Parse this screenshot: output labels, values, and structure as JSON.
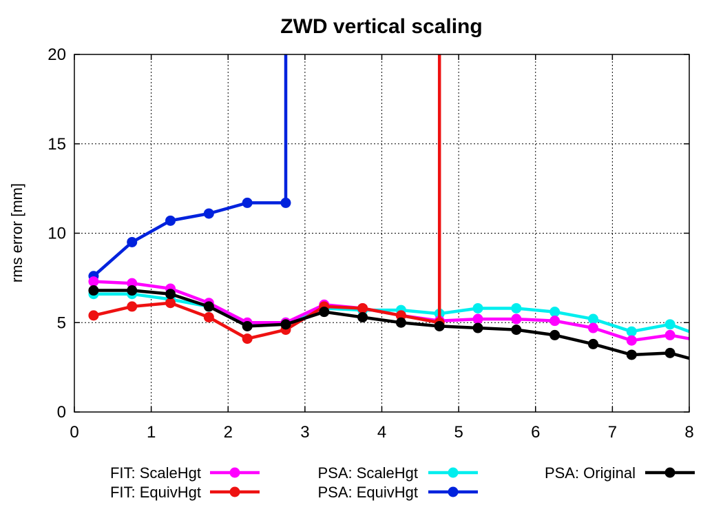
{
  "chart_data": {
    "type": "line",
    "title": "ZWD vertical scaling",
    "xlabel": "",
    "ylabel": "rms error [mm]",
    "xlim": [
      0,
      8
    ],
    "ylim": [
      0,
      20
    ],
    "xticks": [
      0,
      1,
      2,
      3,
      4,
      5,
      6,
      7,
      8
    ],
    "yticks": [
      0,
      5,
      10,
      15,
      20
    ],
    "grid": true,
    "legend_placement": "bottom",
    "series": [
      {
        "name": "FIT: ScaleHgt",
        "color": "#ff00ff",
        "x": [
          0.25,
          0.75,
          1.25,
          1.75,
          2.25,
          2.75,
          3.25,
          3.75,
          4.25,
          4.75,
          5.25,
          5.75,
          6.25,
          6.75,
          7.25,
          7.75,
          8.0
        ],
        "y": [
          7.3,
          7.2,
          6.9,
          6.1,
          5.0,
          5.0,
          6.0,
          5.8,
          5.4,
          5.1,
          5.2,
          5.2,
          5.1,
          4.7,
          4.0,
          4.3,
          4.1
        ]
      },
      {
        "name": "FIT: EquivHgt",
        "color": "#ee1111",
        "x": [
          0.25,
          0.75,
          1.25,
          1.75,
          2.25,
          2.75,
          3.25,
          3.75,
          4.25,
          4.75,
          4.75
        ],
        "y": [
          5.4,
          5.9,
          6.1,
          5.3,
          4.1,
          4.6,
          5.9,
          5.8,
          5.4,
          5.0,
          20.0
        ]
      },
      {
        "name": "PSA: ScaleHgt",
        "color": "#00eeee",
        "x": [
          0.25,
          0.75,
          1.25,
          1.75,
          2.25,
          2.75,
          3.25,
          3.75,
          4.25,
          4.75,
          5.25,
          5.75,
          6.25,
          6.75,
          7.25,
          7.75,
          8.0
        ],
        "y": [
          6.6,
          6.6,
          6.3,
          5.9,
          4.9,
          5.0,
          5.8,
          5.7,
          5.7,
          5.5,
          5.8,
          5.8,
          5.6,
          5.2,
          4.5,
          4.9,
          4.5
        ]
      },
      {
        "name": "PSA: EquivHgt",
        "color": "#0022dd",
        "x": [
          0.25,
          0.75,
          1.25,
          1.75,
          2.25,
          2.75,
          2.75
        ],
        "y": [
          7.6,
          9.5,
          10.7,
          11.1,
          11.7,
          11.7,
          20.0
        ]
      },
      {
        "name": "PSA: Original",
        "color": "#000000",
        "x": [
          0.25,
          0.75,
          1.25,
          1.75,
          2.25,
          2.75,
          3.25,
          3.75,
          4.25,
          4.75,
          5.25,
          5.75,
          6.25,
          6.75,
          7.25,
          7.75,
          8.0
        ],
        "y": [
          6.8,
          6.8,
          6.6,
          5.9,
          4.8,
          4.9,
          5.6,
          5.3,
          5.0,
          4.8,
          4.7,
          4.6,
          4.3,
          3.8,
          3.2,
          3.3,
          3.0
        ]
      }
    ]
  }
}
